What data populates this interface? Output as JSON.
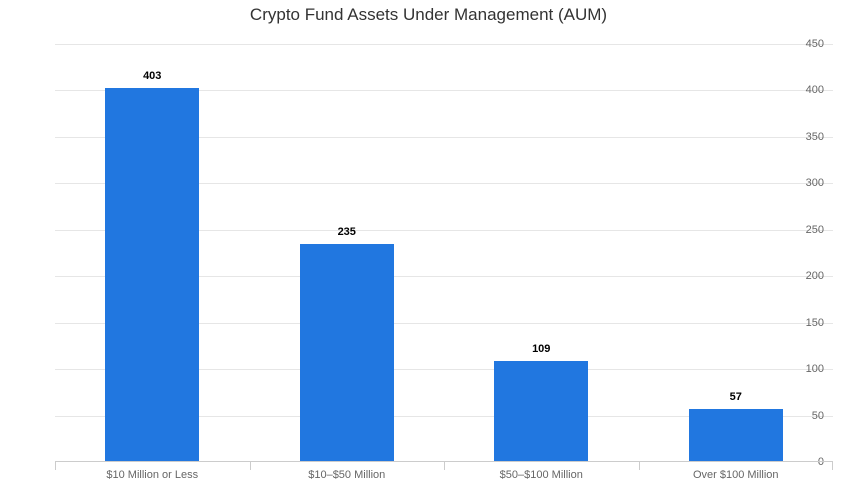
{
  "chart_data": {
    "type": "bar",
    "title": "Crypto Fund Assets Under Management (AUM)",
    "categories": [
      "$10 Million or Less",
      "$10–$50 Million",
      "$50–$100 Million",
      "Over $100 Million"
    ],
    "values": [
      403,
      235,
      109,
      57
    ],
    "xlabel": "",
    "ylabel": "",
    "ylim": [
      0,
      450
    ],
    "yticks": [
      0,
      50,
      100,
      150,
      200,
      250,
      300,
      350,
      400,
      450
    ],
    "grid": true,
    "legend": false,
    "data_labels": true
  },
  "colors": {
    "bar": "#2177e0",
    "gridline": "#e6e6e6",
    "axis_line": "#cccccc",
    "axis_label": "#666666",
    "data_label": "#000000",
    "title": "#333333",
    "background": "#ffffff"
  }
}
